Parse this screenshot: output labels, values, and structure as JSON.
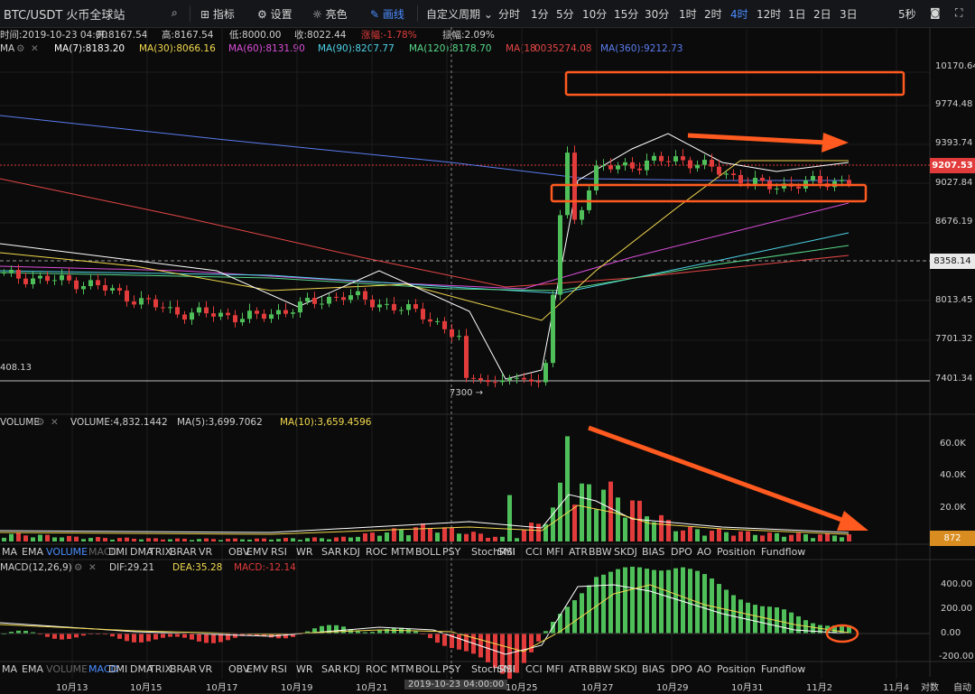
{
  "toolbar": {
    "pair": "BTC/USDT 火币全球站",
    "indicators": "指标",
    "settings": "设置",
    "theme": "亮色",
    "draw": "画线",
    "custom_period": "自定义周期",
    "periods": [
      "分时",
      "1分",
      "5分",
      "10分",
      "15分",
      "30分",
      "1时",
      "2时",
      "4时",
      "12时",
      "1日",
      "2日",
      "3日"
    ],
    "active_period": "4时",
    "right_period": "5秒"
  },
  "info": {
    "time_label": "时间:2019-10-23 04:00",
    "open": "开:8167.54",
    "high": "高:8167.54",
    "low": "低:8000.00",
    "close": "收:8022.44",
    "change": "涨幅:-1.78%",
    "amplitude": "振幅:2.09%"
  },
  "ma": {
    "name": "MA",
    "ma7": "MA(7):8183.20",
    "ma30": "MA(30):8066.16",
    "ma60": "MA(60):8131.90",
    "ma90": "MA(90):8207.77",
    "ma120": "MA(120):8178.70",
    "ma180": "MA(18",
    "ma180_overlap": "0035274.08",
    "ma360": "MA(360):9212.73"
  },
  "price_axis": [
    "10170.64",
    "9774.48",
    "9393.74",
    "9027.84",
    "8676.19",
    "8358.14",
    "8013.45",
    "7701.32",
    "7401.34"
  ],
  "price_tag": "9207.53",
  "line_tag": "8358.14",
  "low_label": "7300 →",
  "left_label": "408.13",
  "volume": {
    "name": "VOLUME",
    "vol": "VOLUME:4,832.1442",
    "ma5": "MA(5):3,699.7062",
    "ma10": "MA(10):3,659.4596",
    "axis": [
      "60.0K",
      "40.0K",
      "20.0K"
    ],
    "tag": "872"
  },
  "macd": {
    "name": "MACD(12,26,9)",
    "dif": "DIF:29.21",
    "dea": "DEA:35.28",
    "macd": "MACD:-12.14",
    "axis": [
      "400.00",
      "200.00",
      "0.00",
      "-200.00"
    ]
  },
  "indicator_tabs": [
    "MA",
    "EMA",
    "VOLUME",
    "MACD",
    "DMI",
    "DMA",
    "TRIX",
    "BRAR",
    "VR",
    "OBV",
    "EMV",
    "RSI",
    "WR",
    "SAR",
    "KDJ",
    "ROC",
    "MTM",
    "BOLL",
    "PSY",
    "StochRSI",
    "SMI",
    "CCI",
    "MFI",
    "ATR",
    "BBW",
    "SKDJ",
    "BIAS",
    "DPO",
    "AO",
    "Position",
    "Fundflow"
  ],
  "x_axis": [
    "10月13",
    "10月15",
    "10月17",
    "10月19",
    "10月21",
    "2019-10-23 04:00:00",
    "10月25",
    "10月27",
    "10月29",
    "10月31",
    "11月2",
    "11月4"
  ],
  "footer": {
    "log": "对数",
    "auto": "自动"
  },
  "colors": {
    "up": "#4fbf5a",
    "down": "#e23b3b",
    "accent": "#ff5a1f",
    "active": "#4a8dff"
  },
  "chart_data": {
    "type": "candlestick",
    "title": "BTC/USDT",
    "interval": "4时",
    "ylim": [
      7300,
      10300
    ],
    "x": [
      "10月13",
      "10月15",
      "10月17",
      "10月19",
      "10月21",
      "10月23",
      "10月25",
      "10月27",
      "10月29",
      "10月31",
      "11月2"
    ],
    "close": [
      8370,
      8300,
      8050,
      8000,
      8200,
      8022,
      7450,
      9300,
      9400,
      9150,
      9207
    ],
    "volume_k": [
      6,
      3,
      2,
      2,
      3,
      12,
      2,
      45,
      10,
      6,
      5
    ],
    "macd_dif": [
      0,
      -20,
      -40,
      -30,
      40,
      0,
      -250,
      350,
      400,
      150,
      29
    ],
    "ma_series": [
      {
        "name": "MA(7)",
        "color": "#ffffff"
      },
      {
        "name": "MA(30)",
        "color": "#f2d94e"
      },
      {
        "name": "MA(60)",
        "color": "#d94ed9"
      },
      {
        "name": "MA(90)",
        "color": "#4ed3e8"
      },
      {
        "name": "MA(120)",
        "color": "#57d98a"
      },
      {
        "name": "MA(180)",
        "color": "#e64646"
      },
      {
        "name": "MA(360)",
        "color": "#5b7cf0"
      }
    ]
  }
}
